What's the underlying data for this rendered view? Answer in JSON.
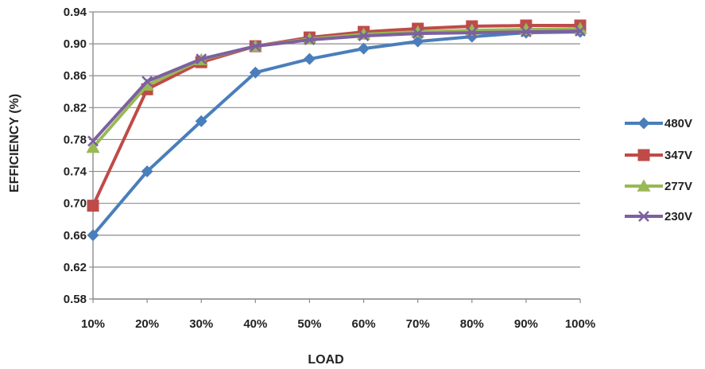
{
  "chart_data": {
    "type": "line",
    "xlabel": "LOAD",
    "ylabel": "EFFICIENCY (%)",
    "categories": [
      "10%",
      "20%",
      "30%",
      "40%",
      "50%",
      "60%",
      "70%",
      "80%",
      "90%",
      "100%"
    ],
    "y_ticks": [
      "0.58",
      "0.62",
      "0.66",
      "0.70",
      "0.74",
      "0.78",
      "0.82",
      "0.86",
      "0.90",
      "0.94"
    ],
    "ylim": [
      0.58,
      0.94
    ],
    "grid": true,
    "legend_position": "right",
    "series": [
      {
        "name": "480V",
        "color": "#4a7ebb",
        "marker": "diamond",
        "values": [
          0.66,
          0.74,
          0.803,
          0.864,
          0.881,
          0.894,
          0.903,
          0.909,
          0.914,
          0.915
        ]
      },
      {
        "name": "347V",
        "color": "#be4b48",
        "marker": "square",
        "values": [
          0.697,
          0.843,
          0.877,
          0.897,
          0.908,
          0.915,
          0.919,
          0.922,
          0.923,
          0.923
        ]
      },
      {
        "name": "277V",
        "color": "#98b954",
        "marker": "triangle",
        "values": [
          0.77,
          0.848,
          0.88,
          0.897,
          0.906,
          0.912,
          0.915,
          0.917,
          0.918,
          0.919
        ]
      },
      {
        "name": "230V",
        "color": "#7d60a0",
        "marker": "x",
        "values": [
          0.778,
          0.853,
          0.881,
          0.897,
          0.905,
          0.91,
          0.913,
          0.914,
          0.915,
          0.916
        ]
      }
    ]
  }
}
